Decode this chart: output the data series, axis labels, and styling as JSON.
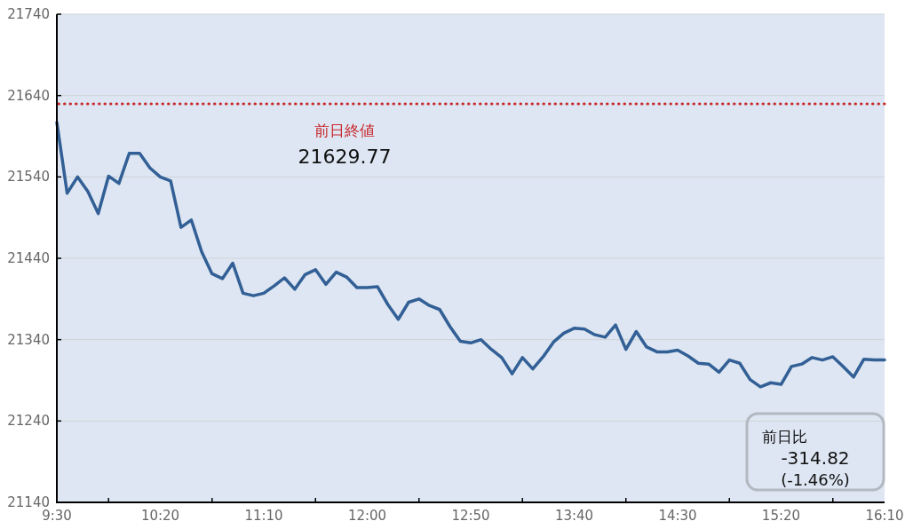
{
  "chart_data": {
    "type": "line",
    "x": [
      9.5,
      9.5833,
      9.6667,
      9.75,
      9.8333,
      9.9167,
      10,
      10.0833,
      10.1667,
      10.25,
      10.3333,
      10.4167,
      10.5,
      10.5833,
      10.6667,
      10.75,
      10.8333,
      10.9167,
      11,
      11.0833,
      11.1667,
      11.25,
      11.3333,
      11.4167,
      11.5,
      11.5833,
      11.6667,
      11.75,
      11.8333,
      11.9167,
      12,
      12.0833,
      12.1667,
      12.25,
      12.3333,
      12.4167,
      12.5,
      12.5833,
      12.6667,
      12.75,
      12.8333,
      12.9167,
      13,
      13.0833,
      13.1667,
      13.25,
      13.3333,
      13.4167,
      13.5,
      13.5833,
      13.6667,
      13.75,
      13.8333,
      13.9167,
      14,
      14.0833,
      14.1667,
      14.25,
      14.3333,
      14.4167,
      14.5,
      14.5833,
      14.6667,
      14.75,
      14.8333,
      14.9167,
      15,
      15.0833,
      15.1667,
      15.25,
      15.3333,
      15.4167,
      15.5,
      15.5833,
      15.6667,
      15.75,
      15.8333,
      15.9167,
      16,
      16.0833,
      16.1667
    ],
    "series": [
      {
        "color": "#325f95",
        "values": [
          21607,
          21520,
          21540,
          21522,
          21495,
          21541,
          21532,
          21569,
          21569,
          21551,
          21540,
          21535,
          21478,
          21487,
          21448,
          21421,
          21415,
          21434,
          21397,
          21394,
          21397,
          21406,
          21416,
          21402,
          21420,
          21426,
          21408,
          21423,
          21417,
          21404,
          21404,
          21405,
          21383,
          21365,
          21386,
          21390,
          21382,
          21377,
          21356,
          21338,
          21336,
          21340,
          21328,
          21318,
          21298,
          21318,
          21304,
          21319,
          21337,
          21348,
          21354,
          21353,
          21346,
          21343,
          21358,
          21328,
          21350,
          21331,
          21325,
          21325,
          21327,
          21320,
          21311,
          21310,
          21300,
          21315,
          21311,
          21291,
          21282,
          21287,
          21285,
          21307,
          21310,
          21318,
          21315,
          21319,
          21307,
          21294,
          21316,
          21315,
          21315
        ]
      }
    ],
    "xlim": [
      9.5,
      16.1667
    ],
    "xticks": [
      {
        "value": 9.5,
        "label": "9:30"
      },
      {
        "value": 9.9167,
        "label": null
      },
      {
        "value": 10.3333,
        "label": "10:20"
      },
      {
        "value": 10.75,
        "label": null
      },
      {
        "value": 11.1667,
        "label": "11:10"
      },
      {
        "value": 11.5833,
        "label": null
      },
      {
        "value": 12,
        "label": "12:00"
      },
      {
        "value": 12.4167,
        "label": null
      },
      {
        "value": 12.8333,
        "label": "12:50"
      },
      {
        "value": 13.25,
        "label": null
      },
      {
        "value": 13.6667,
        "label": "13:40"
      },
      {
        "value": 14.0833,
        "label": null
      },
      {
        "value": 14.5,
        "label": "14:30"
      },
      {
        "value": 14.9167,
        "label": null
      },
      {
        "value": 15.3333,
        "label": "15:20"
      },
      {
        "value": 15.75,
        "label": null
      },
      {
        "value": 16.1667,
        "label": "16:10"
      }
    ],
    "ylim": [
      21140,
      21740
    ],
    "yticks": [
      21140,
      21240,
      21340,
      21440,
      21540,
      21640,
      21740
    ],
    "grid": "y",
    "ref_lines": [
      {
        "axis": "y",
        "value": 21629.77,
        "label": "前日終値",
        "color": "#c8282d",
        "line_style": "dotted"
      }
    ],
    "annotations": [
      "21629.77",
      "前日比",
      "-314.82",
      "(-1.46%)"
    ]
  }
}
